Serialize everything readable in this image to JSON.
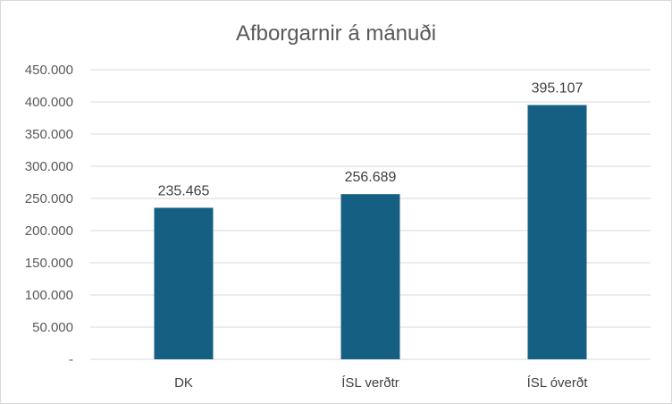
{
  "chart_data": {
    "type": "bar",
    "title": "Afborgarnir á mánuði",
    "xlabel": "",
    "ylabel": "",
    "categories": [
      "DK",
      "ÍSL verðtr",
      "ÍSL óverðt"
    ],
    "values": [
      235465,
      256689,
      395107
    ],
    "value_labels": [
      "235.465",
      "256.689",
      "395.107"
    ],
    "ylim": [
      0,
      450000
    ],
    "y_ticks": [
      0,
      50000,
      100000,
      150000,
      200000,
      250000,
      300000,
      350000,
      400000,
      450000
    ],
    "y_tick_labels": [
      "-",
      "50.000",
      "100.000",
      "150.000",
      "200.000",
      "250.000",
      "300.000",
      "350.000",
      "400.000",
      "450.000"
    ],
    "grid": true,
    "legend": "none",
    "bar_color": "#155f82"
  }
}
